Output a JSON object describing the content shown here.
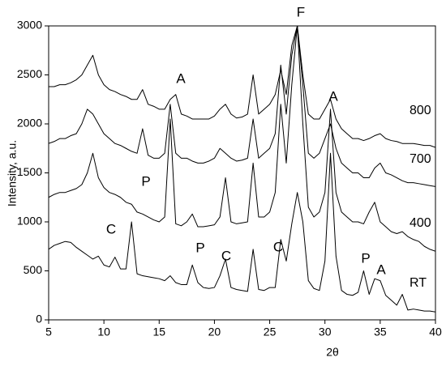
{
  "chart_data": {
    "type": "line",
    "xlabel": "2θ",
    "ylabel": "Intensity, a.u.",
    "x": [
      5,
      5.5,
      6,
      6.5,
      7,
      7.5,
      8,
      8.5,
      9,
      9.5,
      10,
      10.5,
      11,
      11.5,
      12,
      12.5,
      13,
      13.5,
      14,
      14.5,
      15,
      15.5,
      16,
      16.5,
      17,
      17.5,
      18,
      18.5,
      19,
      19.5,
      20,
      20.5,
      21,
      21.5,
      22,
      22.5,
      23,
      23.5,
      24,
      24.5,
      25,
      25.5,
      26,
      26.5,
      27,
      27.5,
      28,
      28.5,
      29,
      29.5,
      30,
      30.5,
      31,
      31.5,
      32,
      32.5,
      33,
      33.5,
      34,
      34.5,
      35,
      35.5,
      36,
      36.5,
      37,
      37.5,
      38,
      38.5,
      39,
      39.5,
      40
    ],
    "series": [
      {
        "name": "800",
        "color": "#000000",
        "values": [
          2380,
          2380,
          2400,
          2400,
          2420,
          2450,
          2500,
          2600,
          2700,
          2500,
          2400,
          2350,
          2330,
          2300,
          2280,
          2250,
          2250,
          2350,
          2200,
          2180,
          2150,
          2150,
          2250,
          2300,
          2100,
          2080,
          2050,
          2050,
          2050,
          2050,
          2080,
          2150,
          2200,
          2100,
          2060,
          2070,
          2100,
          2500,
          2100,
          2150,
          2200,
          2300,
          2550,
          2300,
          2800,
          3000,
          2500,
          2100,
          2050,
          2050,
          2150,
          2250,
          2050,
          1950,
          1900,
          1850,
          1850,
          1830,
          1850,
          1880,
          1900,
          1850,
          1830,
          1820,
          1800,
          1800,
          1800,
          1790,
          1780,
          1780,
          1760
        ]
      },
      {
        "name": "700",
        "color": "#000000",
        "values": [
          1800,
          1820,
          1850,
          1850,
          1880,
          1900,
          2000,
          2150,
          2100,
          2000,
          1900,
          1850,
          1800,
          1780,
          1750,
          1720,
          1700,
          1950,
          1680,
          1650,
          1650,
          1700,
          2200,
          1700,
          1650,
          1650,
          1620,
          1600,
          1600,
          1620,
          1650,
          1750,
          1700,
          1650,
          1620,
          1630,
          1650,
          2050,
          1650,
          1700,
          1750,
          1900,
          2600,
          2100,
          2700,
          3000,
          2400,
          1700,
          1650,
          1700,
          1850,
          2000,
          1750,
          1600,
          1550,
          1500,
          1500,
          1450,
          1450,
          1550,
          1600,
          1500,
          1480,
          1450,
          1420,
          1400,
          1400,
          1390,
          1380,
          1370,
          1360
        ]
      },
      {
        "name": "400",
        "color": "#000000",
        "values": [
          1250,
          1280,
          1300,
          1300,
          1320,
          1340,
          1380,
          1500,
          1700,
          1450,
          1350,
          1300,
          1280,
          1250,
          1200,
          1180,
          1100,
          1080,
          1050,
          1020,
          1000,
          1050,
          2050,
          980,
          960,
          1000,
          1080,
          950,
          950,
          960,
          970,
          1050,
          1450,
          1000,
          980,
          990,
          1000,
          1600,
          1050,
          1050,
          1100,
          1300,
          2200,
          1600,
          2400,
          3000,
          2000,
          1150,
          1050,
          1100,
          1300,
          2150,
          1300,
          1100,
          1050,
          1000,
          1000,
          980,
          1100,
          1200,
          1000,
          950,
          900,
          880,
          900,
          850,
          820,
          800,
          750,
          720,
          700
        ]
      },
      {
        "name": "RT",
        "color": "#000000",
        "values": [
          720,
          760,
          780,
          800,
          790,
          740,
          700,
          660,
          620,
          650,
          560,
          540,
          640,
          520,
          520,
          1000,
          470,
          450,
          440,
          430,
          420,
          400,
          450,
          380,
          360,
          360,
          560,
          380,
          330,
          320,
          330,
          450,
          620,
          330,
          310,
          300,
          290,
          720,
          310,
          300,
          330,
          330,
          820,
          600,
          980,
          1300,
          1000,
          400,
          320,
          300,
          600,
          1700,
          650,
          300,
          260,
          250,
          280,
          500,
          260,
          420,
          400,
          250,
          200,
          150,
          260,
          100,
          110,
          100,
          90,
          90,
          80
        ]
      }
    ],
    "annotations": [
      "A",
      "F",
      "A",
      "P",
      "C",
      "P",
      "C",
      "C",
      "P",
      "A"
    ],
    "xlim": [
      5,
      40
    ],
    "ylim": [
      0,
      3000
    ],
    "xticks": [
      5,
      10,
      15,
      20,
      25,
      30,
      35,
      40
    ],
    "yticks": [
      0,
      500,
      1000,
      1500,
      2000,
      2500,
      3000
    ]
  }
}
